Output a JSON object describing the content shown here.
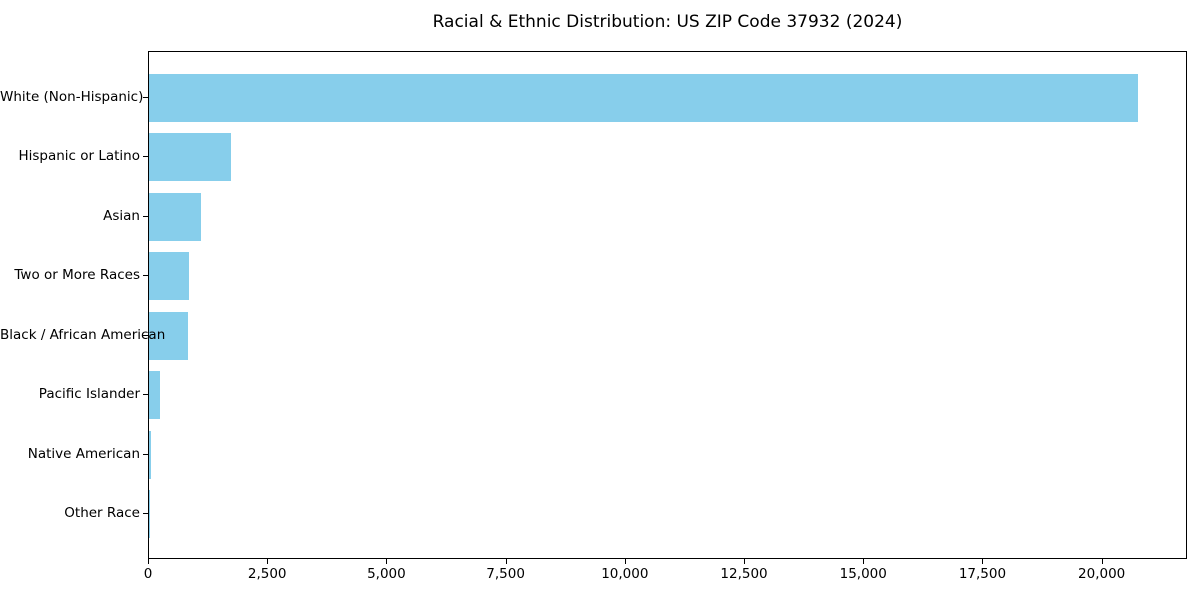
{
  "chart_data": {
    "type": "bar",
    "orientation": "horizontal",
    "title": "Racial & Ethnic Distribution: US ZIP Code 37932 (2024)",
    "categories": [
      "White (Non-Hispanic)",
      "Hispanic or Latino",
      "Asian",
      "Two or More Races",
      "Black / African American",
      "Pacific Islander",
      "Native American",
      "Other Race"
    ],
    "values": [
      20750,
      1730,
      1100,
      840,
      820,
      225,
      45,
      10
    ],
    "bar_color": "#87CEEB",
    "xlabel": "",
    "ylabel": "",
    "xlim": [
      0,
      21790
    ],
    "x_ticks": [
      0,
      2500,
      5000,
      7500,
      10000,
      12500,
      15000,
      17500,
      20000
    ],
    "x_tick_labels": [
      "0",
      "2,500",
      "5,000",
      "7,500",
      "10,000",
      "12,500",
      "15,000",
      "17,500",
      "20,000"
    ],
    "grid": false,
    "legend_position": "none"
  }
}
